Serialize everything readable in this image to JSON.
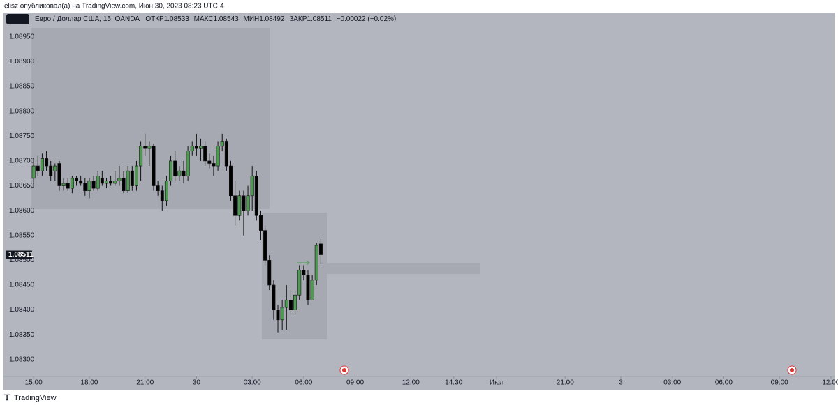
{
  "chart_data": {
    "type": "candlestick",
    "publisher": "elisz опубликовал(а) на TradingView.com, Июн 30, 2023 08:23 UTC-4",
    "title": "Евро / Доллар США, 15, OANDA",
    "stats": [
      {
        "label": "ОТКР",
        "value": 1.08533
      },
      {
        "label": "МАКС",
        "value": 1.08543
      },
      {
        "label": "МИН",
        "value": 1.08492
      },
      {
        "label": "ЗАКР",
        "value": 1.08511
      }
    ],
    "change": "−0.00022 (−0.02%)",
    "branding": "TradingView",
    "up_color": "#4f9a52",
    "down_color": "#000000",
    "open": [
      1.08665,
      1.0869,
      1.0868,
      1.08705,
      1.0869,
      1.0868,
      1.08695,
      1.0865,
      1.08655,
      1.08645,
      1.08665,
      1.0866,
      1.08655,
      1.0864,
      1.0866,
      1.08645,
      1.08665,
      1.08655,
      1.0866,
      1.08655,
      1.0866,
      1.08665,
      1.0864,
      1.0868,
      1.0865,
      1.0869,
      1.0873,
      1.08725,
      1.0873,
      1.0865,
      1.0864,
      1.0862,
      1.0866,
      1.087,
      1.0867,
      1.0868,
      1.0867,
      1.0872,
      1.0873,
      1.08725,
      1.0873,
      1.087,
      1.08695,
      1.0869,
      1.0873,
      1.0874,
      1.0869,
      1.0863,
      1.0859,
      1.0863,
      1.086,
      1.0863,
      1.0867,
      1.0859,
      1.0856,
      1.085,
      1.0845,
      1.084,
      1.0838,
      1.08405,
      1.0842,
      1.084,
      1.0843,
      1.0848,
      1.0847,
      1.0842,
      1.0846,
      1.08533
    ],
    "high": [
      1.08705,
      1.0871,
      1.08715,
      1.0872,
      1.087,
      1.08695,
      1.087,
      1.08665,
      1.08665,
      1.0867,
      1.0867,
      1.0867,
      1.08665,
      1.08665,
      1.0867,
      1.0868,
      1.0868,
      1.08665,
      1.0867,
      1.0868,
      1.0869,
      1.0868,
      1.0869,
      1.0869,
      1.087,
      1.0874,
      1.08755,
      1.0874,
      1.08735,
      1.0866,
      1.0865,
      1.0867,
      1.0871,
      1.0872,
      1.0869,
      1.087,
      1.0873,
      1.0874,
      1.08755,
      1.08745,
      1.0874,
      1.08715,
      1.0871,
      1.0874,
      1.08755,
      1.08745,
      1.087,
      1.0866,
      1.0864,
      1.0864,
      1.0865,
      1.0869,
      1.0868,
      1.086,
      1.0857,
      1.0851,
      1.0846,
      1.0841,
      1.0842,
      1.0845,
      1.0844,
      1.0844,
      1.0849,
      1.0849,
      1.0848,
      1.0847,
      1.08535,
      1.08543
    ],
    "low": [
      1.0865,
      1.0867,
      1.0867,
      1.0868,
      1.0866,
      1.0866,
      1.0864,
      1.0864,
      1.0864,
      1.08635,
      1.0865,
      1.0865,
      1.0863,
      1.08625,
      1.0864,
      1.0864,
      1.0865,
      1.08645,
      1.0865,
      1.0865,
      1.0865,
      1.08635,
      1.08635,
      1.0864,
      1.0864,
      1.0866,
      1.0871,
      1.0869,
      1.0864,
      1.0863,
      1.086,
      1.0861,
      1.0865,
      1.0866,
      1.0866,
      1.08655,
      1.0866,
      1.0871,
      1.0871,
      1.087,
      1.0869,
      1.08685,
      1.0867,
      1.0868,
      1.0872,
      1.0868,
      1.0862,
      1.0857,
      1.0858,
      1.0855,
      1.0859,
      1.086,
      1.0858,
      1.0854,
      1.0849,
      1.0844,
      1.0838,
      1.08355,
      1.0836,
      1.0836,
      1.0839,
      1.0839,
      1.0842,
      1.0846,
      1.0841,
      1.0842,
      1.0845,
      1.08492
    ],
    "close": [
      1.0869,
      1.0868,
      1.08705,
      1.0869,
      1.0867,
      1.0869,
      1.0865,
      1.08655,
      1.08645,
      1.08665,
      1.0866,
      1.08655,
      1.0864,
      1.0866,
      1.08645,
      1.0867,
      1.08655,
      1.0866,
      1.08655,
      1.0866,
      1.08665,
      1.0864,
      1.0868,
      1.0865,
      1.0869,
      1.0873,
      1.08725,
      1.0873,
      1.0865,
      1.0864,
      1.0862,
      1.0866,
      1.087,
      1.0867,
      1.0868,
      1.0867,
      1.0872,
      1.0873,
      1.08725,
      1.0873,
      1.087,
      1.08695,
      1.0869,
      1.0873,
      1.0874,
      1.0869,
      1.0863,
      1.0859,
      1.0863,
      1.086,
      1.0863,
      1.0867,
      1.0859,
      1.0856,
      1.085,
      1.0845,
      1.084,
      1.0838,
      1.08405,
      1.0842,
      1.084,
      1.0843,
      1.0848,
      1.0847,
      1.0842,
      1.0846,
      1.0853,
      1.08511
    ],
    "ylim": [
      1.08266,
      1.08999
    ],
    "yticks": [
      {
        "value": 1.083,
        "label": "1.08300"
      },
      {
        "value": 1.0835,
        "label": "1.08350"
      },
      {
        "value": 1.084,
        "label": "1.08400"
      },
      {
        "value": 1.0845,
        "label": "1.08450"
      },
      {
        "value": 1.085,
        "label": "1.08500"
      },
      {
        "value": 1.0855,
        "label": "1.08550"
      },
      {
        "value": 1.086,
        "label": "1.08600"
      },
      {
        "value": 1.0865,
        "label": "1.08650"
      },
      {
        "value": 1.087,
        "label": "1.08700"
      },
      {
        "value": 1.0875,
        "label": "1.08750"
      },
      {
        "value": 1.088,
        "label": "1.08800"
      },
      {
        "value": 1.0885,
        "label": "1.08850"
      },
      {
        "value": 1.089,
        "label": "1.08900"
      },
      {
        "value": 1.0895,
        "label": "1.08950"
      }
    ],
    "xlim": [
      -1,
      187
    ],
    "xticks": [
      {
        "value": 0,
        "label": "15:00"
      },
      {
        "value": 13,
        "label": "18:00"
      },
      {
        "value": 26,
        "label": "21:00"
      },
      {
        "value": 38,
        "label": "30"
      },
      {
        "value": 51,
        "label": "03:00"
      },
      {
        "value": 63,
        "label": "06:00"
      },
      {
        "value": 75,
        "label": "09:00"
      },
      {
        "value": 88,
        "label": "12:00"
      },
      {
        "value": 98,
        "label": "14:30"
      },
      {
        "value": 108,
        "label": "Июл"
      },
      {
        "value": 124,
        "label": "21:00"
      },
      {
        "value": 137,
        "label": "3"
      },
      {
        "value": 149,
        "label": "03:00"
      },
      {
        "value": 161,
        "label": "06:00"
      },
      {
        "value": 174,
        "label": "09:00"
      },
      {
        "value": 186,
        "label": "12:00"
      }
    ]
  }
}
